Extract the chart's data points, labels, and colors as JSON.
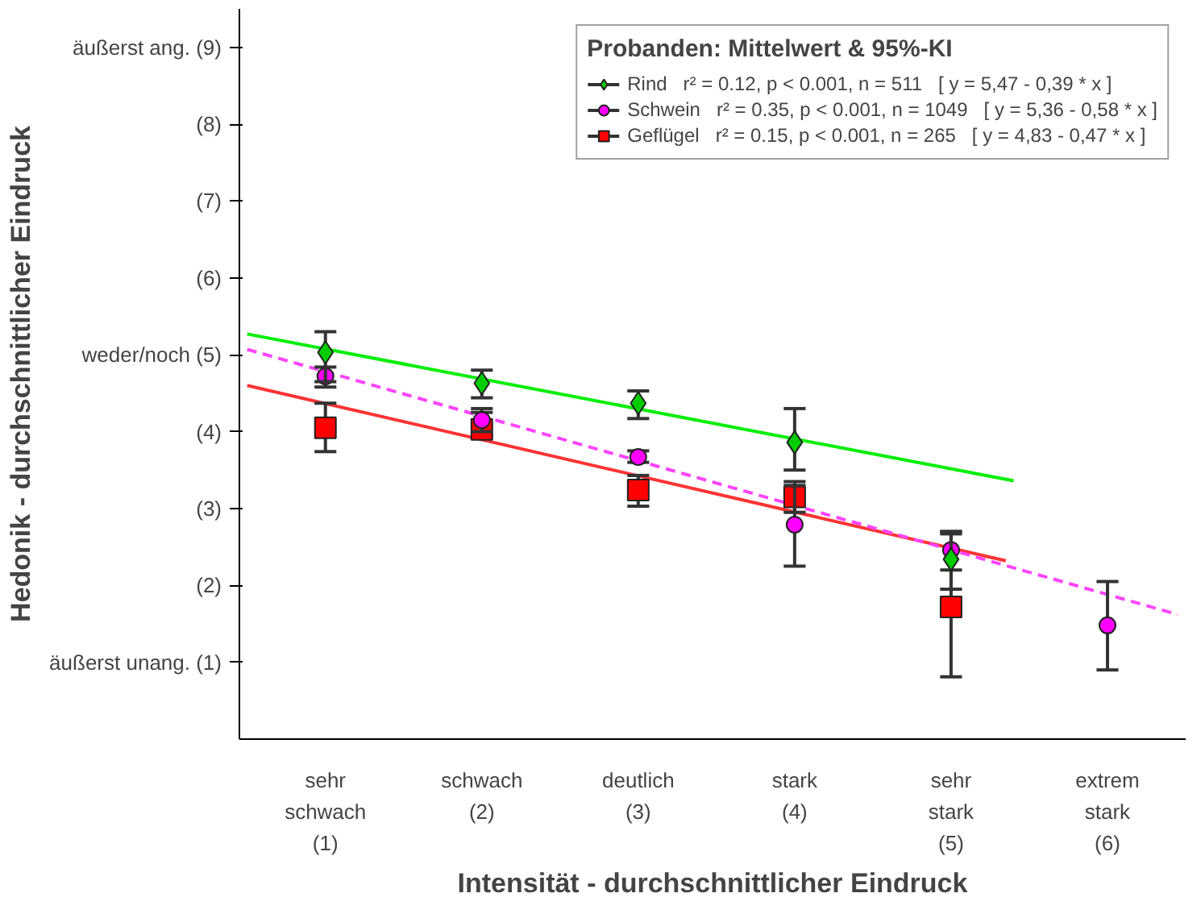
{
  "chart_data": {
    "type": "scatter",
    "xlabel": "Intensität - durchschnittlicher Eindruck",
    "ylabel": "Hedonik - durchschnittlicher Eindruck",
    "legend_title": "Probanden: Mittelwert & 95%-KI",
    "xlim": [
      0.45,
      6.5
    ],
    "ylim": [
      0,
      9.5
    ],
    "xticks": [
      {
        "value": 1,
        "label": "sehr\nschwach\n(1)"
      },
      {
        "value": 2,
        "label": "schwach\n(2)"
      },
      {
        "value": 3,
        "label": "deutlich\n(3)"
      },
      {
        "value": 4,
        "label": "stark\n(4)"
      },
      {
        "value": 5,
        "label": "sehr\nstark\n(5)"
      },
      {
        "value": 6,
        "label": "extrem\nstark\n(6)"
      }
    ],
    "yticks": [
      {
        "value": 1,
        "label": "äußerst unang. (1)"
      },
      {
        "value": 2,
        "label": "(2)"
      },
      {
        "value": 3,
        "label": "(3)"
      },
      {
        "value": 4,
        "label": "(4)"
      },
      {
        "value": 5,
        "label": "weder/noch (5)"
      },
      {
        "value": 6,
        "label": "(6)"
      },
      {
        "value": 7,
        "label": "(7)"
      },
      {
        "value": 8,
        "label": "(8)"
      },
      {
        "value": 9,
        "label": "äußerst ang. (9)"
      }
    ],
    "grid": false,
    "legend": "top right",
    "series": [
      {
        "name": "Rind   r² = 0.12, p < 0.001, n = 511   [ y = 5,47 - 0,39 * x ]",
        "color": "#00cc00",
        "marker": "diamond",
        "x": [
          1,
          2,
          3,
          4,
          5
        ],
        "values": [
          5.03,
          4.63,
          4.37,
          3.86,
          2.34
        ],
        "errors": [
          [
            4.65,
            5.3
          ],
          [
            4.44,
            4.8
          ],
          [
            4.17,
            4.53
          ],
          [
            3.5,
            4.3
          ],
          [
            1.95,
            2.67
          ]
        ]
      },
      {
        "name": "Schwein   r² = 0.35, p < 0.001, n = 1049   [ y = 5,36 - 0,58 * x ]",
        "color": "#ff00ff",
        "marker": "circle",
        "x": [
          1,
          2,
          3,
          4,
          5,
          6
        ],
        "values": [
          4.72,
          4.15,
          3.67,
          2.79,
          2.46,
          1.48
        ],
        "errors": [
          [
            4.58,
            4.84
          ],
          [
            4.0,
            4.3
          ],
          [
            3.6,
            3.75
          ],
          [
            2.25,
            3.3
          ],
          [
            2.2,
            2.7
          ],
          [
            0.9,
            2.05
          ]
        ]
      },
      {
        "name": "Geflügel   r² = 0.15, p < 0.001, n = 265   [ y = 4,83 - 0,47 * x ]",
        "color": "#ff0000",
        "marker": "square",
        "x": [
          1,
          2,
          3,
          4,
          5
        ],
        "values": [
          4.05,
          4.03,
          3.24,
          3.15,
          1.72
        ],
        "errors": [
          [
            3.74,
            4.37
          ],
          [
            3.95,
            4.25
          ],
          [
            3.03,
            3.43
          ],
          [
            2.95,
            3.35
          ],
          [
            0.81,
            2.7
          ]
        ]
      },
      {
        "type": "line",
        "color": "#00ee00",
        "line_style": "solid",
        "x": [
          0.5,
          5.4
        ],
        "values": [
          5.27,
          3.36
        ]
      },
      {
        "type": "line",
        "color": "#ff44ff",
        "line_style": "dashed",
        "x": [
          0.5,
          6.45
        ],
        "values": [
          5.07,
          1.62
        ]
      },
      {
        "type": "line",
        "color": "#ff3333",
        "line_style": "solid",
        "x": [
          0.5,
          5.35
        ],
        "values": [
          4.6,
          2.32
        ]
      }
    ]
  }
}
